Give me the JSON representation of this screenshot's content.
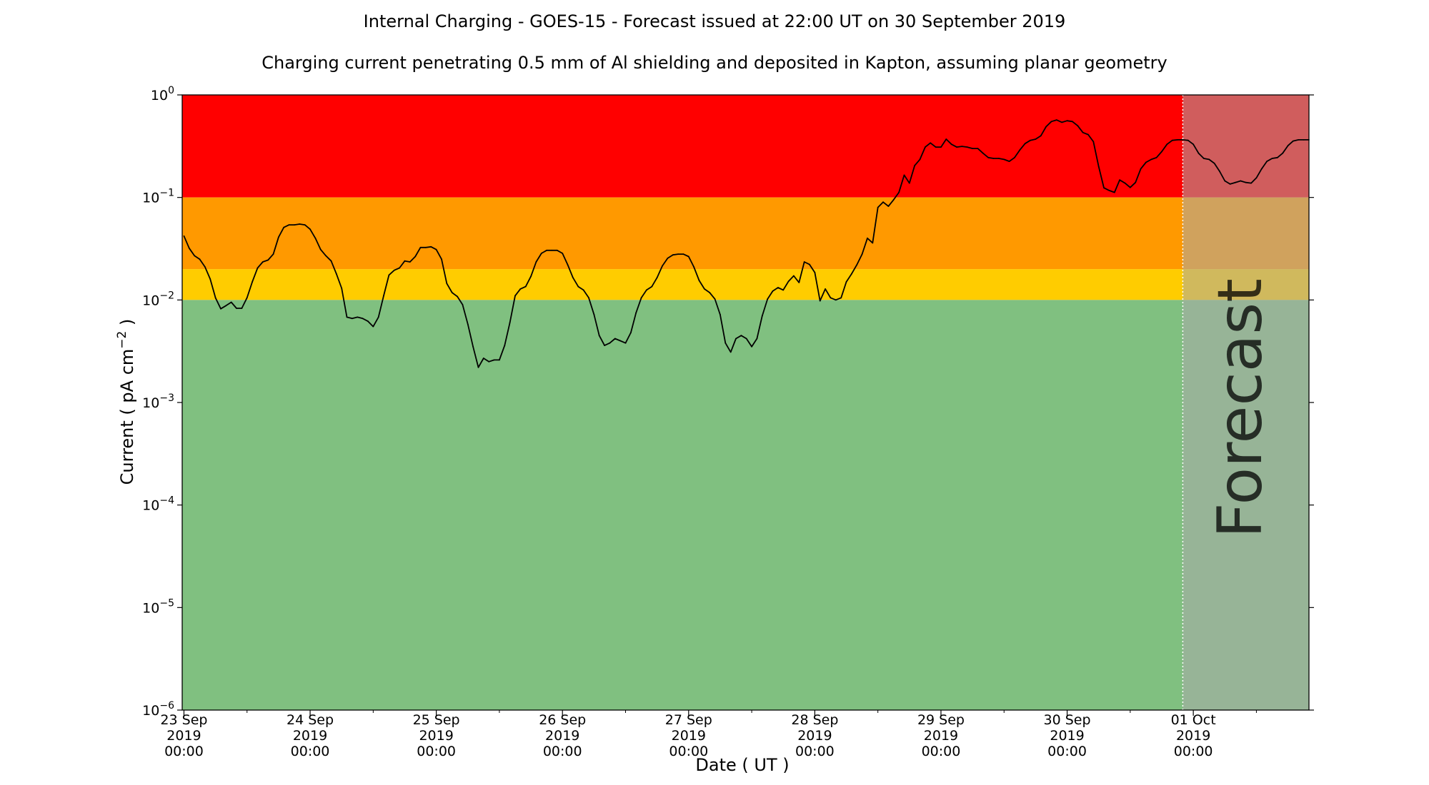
{
  "title": "Internal Charging - GOES-15 - Forecast issued at 22:00 UT on 30 September 2019",
  "subtitle": "Charging current penetrating 0.5 mm of Al shielding and deposited in Kapton, assuming planar geometry",
  "forecast_label": "Forecast",
  "colors": {
    "red": "#ff0000",
    "orange": "#ff9900",
    "yellow": "#ffcc00",
    "green": "#80c080",
    "forecast_overlay": "#aaaaaa",
    "line": "#000000"
  },
  "chart_data": {
    "type": "line",
    "title": "Internal Charging - GOES-15 - Forecast issued at 22:00 UT on 30 September 2019",
    "subtitle": "Charging current penetrating 0.5 mm of Al shielding and deposited in Kapton, assuming planar geometry",
    "xlabel": "Date ( UT )",
    "ylabel": "Current ( pA cm⁻² )",
    "yscale": "log",
    "ylim": [
      1e-06,
      1
    ],
    "xlim": [
      "2019-09-22T23:40",
      "2019-10-01T22:00"
    ],
    "forecast_start": "2019-09-30T22:00",
    "y_ticks": [
      {
        "value": 1e-06,
        "base": "10",
        "exp": "−6"
      },
      {
        "value": 1e-05,
        "base": "10",
        "exp": "−5"
      },
      {
        "value": 0.0001,
        "base": "10",
        "exp": "−4"
      },
      {
        "value": 0.001,
        "base": "10",
        "exp": "−3"
      },
      {
        "value": 0.01,
        "base": "10",
        "exp": "−2"
      },
      {
        "value": 0.1,
        "base": "10",
        "exp": "−1"
      },
      {
        "value": 1,
        "base": "10",
        "exp": "0"
      }
    ],
    "x_ticks": [
      {
        "date": "2019-09-23T00:00",
        "lines": [
          "23 Sep",
          "2019",
          "00:00"
        ]
      },
      {
        "date": "2019-09-24T00:00",
        "lines": [
          "24 Sep",
          "2019",
          "00:00"
        ]
      },
      {
        "date": "2019-09-25T00:00",
        "lines": [
          "25 Sep",
          "2019",
          "00:00"
        ]
      },
      {
        "date": "2019-09-26T00:00",
        "lines": [
          "26 Sep",
          "2019",
          "00:00"
        ]
      },
      {
        "date": "2019-09-27T00:00",
        "lines": [
          "27 Sep",
          "2019",
          "00:00"
        ]
      },
      {
        "date": "2019-09-28T00:00",
        "lines": [
          "28 Sep",
          "2019",
          "00:00"
        ]
      },
      {
        "date": "2019-09-29T00:00",
        "lines": [
          "29 Sep",
          "2019",
          "00:00"
        ]
      },
      {
        "date": "2019-09-30T00:00",
        "lines": [
          "30 Sep",
          "2019",
          "00:00"
        ]
      },
      {
        "date": "2019-10-01T00:00",
        "lines": [
          "01 Oct",
          "2019",
          "00:00"
        ]
      }
    ],
    "bands": [
      {
        "name": "red",
        "from": 0.1,
        "to": 1
      },
      {
        "name": "orange",
        "from": 0.02,
        "to": 0.1
      },
      {
        "name": "yellow",
        "from": 0.01,
        "to": 0.02
      },
      {
        "name": "green",
        "from": 1e-06,
        "to": 0.01
      }
    ],
    "series": [
      {
        "points": [
          [
            "2019-09-23T00:00",
            0.042
          ],
          [
            "2019-09-23T01:00",
            0.032
          ],
          [
            "2019-09-23T02:00",
            0.027
          ],
          [
            "2019-09-23T03:00",
            0.025
          ],
          [
            "2019-09-23T04:00",
            0.021
          ],
          [
            "2019-09-23T05:00",
            0.016
          ],
          [
            "2019-09-23T06:00",
            0.0105
          ],
          [
            "2019-09-23T07:00",
            0.0082
          ],
          [
            "2019-09-23T08:00",
            0.0088
          ],
          [
            "2019-09-23T09:00",
            0.0095
          ],
          [
            "2019-09-23T10:00",
            0.0083
          ],
          [
            "2019-09-23T11:00",
            0.0083
          ],
          [
            "2019-09-23T12:00",
            0.0105
          ],
          [
            "2019-09-23T13:00",
            0.015
          ],
          [
            "2019-09-23T14:00",
            0.0205
          ],
          [
            "2019-09-23T15:00",
            0.0235
          ],
          [
            "2019-09-23T16:00",
            0.0245
          ],
          [
            "2019-09-23T17:00",
            0.028
          ],
          [
            "2019-09-23T18:00",
            0.041
          ],
          [
            "2019-09-23T19:00",
            0.051
          ],
          [
            "2019-09-23T20:00",
            0.054
          ],
          [
            "2019-09-23T21:00",
            0.054
          ],
          [
            "2019-09-23T22:00",
            0.055
          ],
          [
            "2019-09-23T23:00",
            0.054
          ],
          [
            "2019-09-24T00:00",
            0.049
          ],
          [
            "2019-09-24T01:00",
            0.04
          ],
          [
            "2019-09-24T02:00",
            0.031
          ],
          [
            "2019-09-24T03:00",
            0.027
          ],
          [
            "2019-09-24T04:00",
            0.024
          ],
          [
            "2019-09-24T05:00",
            0.018
          ],
          [
            "2019-09-24T06:00",
            0.013
          ],
          [
            "2019-09-24T07:00",
            0.0068
          ],
          [
            "2019-09-24T08:00",
            0.0066
          ],
          [
            "2019-09-24T09:00",
            0.0068
          ],
          [
            "2019-09-24T10:00",
            0.0066
          ],
          [
            "2019-09-24T11:00",
            0.0062
          ],
          [
            "2019-09-24T12:00",
            0.0055
          ],
          [
            "2019-09-24T13:00",
            0.0068
          ],
          [
            "2019-09-24T14:00",
            0.011
          ],
          [
            "2019-09-24T15:00",
            0.0175
          ],
          [
            "2019-09-24T16:00",
            0.0195
          ],
          [
            "2019-09-24T17:00",
            0.0205
          ],
          [
            "2019-09-24T18:00",
            0.024
          ],
          [
            "2019-09-24T19:00",
            0.0235
          ],
          [
            "2019-09-24T20:00",
            0.0265
          ],
          [
            "2019-09-24T21:00",
            0.0325
          ],
          [
            "2019-09-24T22:00",
            0.0325
          ],
          [
            "2019-09-24T23:00",
            0.033
          ],
          [
            "2019-09-25T00:00",
            0.031
          ],
          [
            "2019-09-25T01:00",
            0.025
          ],
          [
            "2019-09-25T02:00",
            0.0145
          ],
          [
            "2019-09-25T03:00",
            0.0118
          ],
          [
            "2019-09-25T04:00",
            0.0108
          ],
          [
            "2019-09-25T05:00",
            0.009
          ],
          [
            "2019-09-25T06:00",
            0.0058
          ],
          [
            "2019-09-25T07:00",
            0.0035
          ],
          [
            "2019-09-25T08:00",
            0.0022
          ],
          [
            "2019-09-25T09:00",
            0.0027
          ],
          [
            "2019-09-25T10:00",
            0.0025
          ],
          [
            "2019-09-25T11:00",
            0.0026
          ],
          [
            "2019-09-25T12:00",
            0.0026
          ],
          [
            "2019-09-25T13:00",
            0.0036
          ],
          [
            "2019-09-25T14:00",
            0.006
          ],
          [
            "2019-09-25T15:00",
            0.011
          ],
          [
            "2019-09-25T16:00",
            0.0128
          ],
          [
            "2019-09-25T17:00",
            0.0135
          ],
          [
            "2019-09-25T18:00",
            0.017
          ],
          [
            "2019-09-25T19:00",
            0.0235
          ],
          [
            "2019-09-25T20:00",
            0.0285
          ],
          [
            "2019-09-25T21:00",
            0.0305
          ],
          [
            "2019-09-25T22:00",
            0.0305
          ],
          [
            "2019-09-25T23:00",
            0.0305
          ],
          [
            "2019-09-26T00:00",
            0.0285
          ],
          [
            "2019-09-26T01:00",
            0.022
          ],
          [
            "2019-09-26T02:00",
            0.0165
          ],
          [
            "2019-09-26T03:00",
            0.0135
          ],
          [
            "2019-09-26T04:00",
            0.0125
          ],
          [
            "2019-09-26T05:00",
            0.0105
          ],
          [
            "2019-09-26T06:00",
            0.0072
          ],
          [
            "2019-09-26T07:00",
            0.0045
          ],
          [
            "2019-09-26T08:00",
            0.0036
          ],
          [
            "2019-09-26T09:00",
            0.0038
          ],
          [
            "2019-09-26T10:00",
            0.0042
          ],
          [
            "2019-09-26T11:00",
            0.004
          ],
          [
            "2019-09-26T12:00",
            0.0038
          ],
          [
            "2019-09-26T13:00",
            0.0048
          ],
          [
            "2019-09-26T14:00",
            0.0075
          ],
          [
            "2019-09-26T15:00",
            0.0105
          ],
          [
            "2019-09-26T16:00",
            0.0125
          ],
          [
            "2019-09-26T17:00",
            0.0135
          ],
          [
            "2019-09-26T18:00",
            0.0165
          ],
          [
            "2019-09-26T19:00",
            0.0215
          ],
          [
            "2019-09-26T20:00",
            0.0255
          ],
          [
            "2019-09-26T21:00",
            0.0275
          ],
          [
            "2019-09-26T22:00",
            0.028
          ],
          [
            "2019-09-26T23:00",
            0.028
          ],
          [
            "2019-09-27T00:00",
            0.0265
          ],
          [
            "2019-09-27T01:00",
            0.021
          ],
          [
            "2019-09-27T02:00",
            0.0155
          ],
          [
            "2019-09-27T03:00",
            0.0128
          ],
          [
            "2019-09-27T04:00",
            0.0118
          ],
          [
            "2019-09-27T05:00",
            0.0102
          ],
          [
            "2019-09-27T06:00",
            0.0072
          ],
          [
            "2019-09-27T07:00",
            0.0038
          ],
          [
            "2019-09-27T08:00",
            0.0031
          ],
          [
            "2019-09-27T09:00",
            0.0042
          ],
          [
            "2019-09-27T10:00",
            0.0045
          ],
          [
            "2019-09-27T11:00",
            0.0042
          ],
          [
            "2019-09-27T12:00",
            0.0035
          ],
          [
            "2019-09-27T13:00",
            0.0042
          ],
          [
            "2019-09-27T14:00",
            0.007
          ],
          [
            "2019-09-27T15:00",
            0.0102
          ],
          [
            "2019-09-27T16:00",
            0.0122
          ],
          [
            "2019-09-27T17:00",
            0.0132
          ],
          [
            "2019-09-27T18:00",
            0.0125
          ],
          [
            "2019-09-27T19:00",
            0.0152
          ],
          [
            "2019-09-27T20:00",
            0.0172
          ],
          [
            "2019-09-27T21:00",
            0.0148
          ],
          [
            "2019-09-27T22:00",
            0.0235
          ],
          [
            "2019-09-27T23:00",
            0.0222
          ],
          [
            "2019-09-28T00:00",
            0.0185
          ],
          [
            "2019-09-28T01:00",
            0.0098
          ],
          [
            "2019-09-28T02:00",
            0.0128
          ],
          [
            "2019-09-28T03:00",
            0.0105
          ],
          [
            "2019-09-28T04:00",
            0.01
          ],
          [
            "2019-09-28T05:00",
            0.0105
          ],
          [
            "2019-09-28T06:00",
            0.015
          ],
          [
            "2019-09-28T07:00",
            0.018
          ],
          [
            "2019-09-28T08:00",
            0.022
          ],
          [
            "2019-09-28T09:00",
            0.028
          ],
          [
            "2019-09-28T10:00",
            0.04
          ],
          [
            "2019-09-28T11:00",
            0.036
          ],
          [
            "2019-09-28T12:00",
            0.08
          ],
          [
            "2019-09-28T13:00",
            0.09
          ],
          [
            "2019-09-28T14:00",
            0.082
          ],
          [
            "2019-09-28T15:00",
            0.095
          ],
          [
            "2019-09-28T16:00",
            0.112
          ],
          [
            "2019-09-28T17:00",
            0.165
          ],
          [
            "2019-09-28T18:00",
            0.138
          ],
          [
            "2019-09-28T19:00",
            0.205
          ],
          [
            "2019-09-28T20:00",
            0.235
          ],
          [
            "2019-09-28T21:00",
            0.31
          ],
          [
            "2019-09-28T22:00",
            0.34
          ],
          [
            "2019-09-28T23:00",
            0.31
          ],
          [
            "2019-09-29T00:00",
            0.31
          ],
          [
            "2019-09-29T01:00",
            0.37
          ],
          [
            "2019-09-29T02:00",
            0.33
          ],
          [
            "2019-09-29T03:00",
            0.31
          ],
          [
            "2019-09-29T04:00",
            0.315
          ],
          [
            "2019-09-29T05:00",
            0.31
          ],
          [
            "2019-09-29T06:00",
            0.3
          ],
          [
            "2019-09-29T07:00",
            0.3
          ],
          [
            "2019-09-29T08:00",
            0.27
          ],
          [
            "2019-09-29T09:00",
            0.245
          ],
          [
            "2019-09-29T10:00",
            0.24
          ],
          [
            "2019-09-29T11:00",
            0.24
          ],
          [
            "2019-09-29T12:00",
            0.235
          ],
          [
            "2019-09-29T13:00",
            0.225
          ],
          [
            "2019-09-29T14:00",
            0.245
          ],
          [
            "2019-09-29T15:00",
            0.29
          ],
          [
            "2019-09-29T16:00",
            0.335
          ],
          [
            "2019-09-29T17:00",
            0.36
          ],
          [
            "2019-09-29T18:00",
            0.37
          ],
          [
            "2019-09-29T19:00",
            0.4
          ],
          [
            "2019-09-29T20:00",
            0.49
          ],
          [
            "2019-09-29T21:00",
            0.55
          ],
          [
            "2019-09-29T22:00",
            0.57
          ],
          [
            "2019-09-29T23:00",
            0.54
          ],
          [
            "2019-09-30T00:00",
            0.56
          ],
          [
            "2019-09-30T01:00",
            0.55
          ],
          [
            "2019-09-30T02:00",
            0.5
          ],
          [
            "2019-09-30T03:00",
            0.43
          ],
          [
            "2019-09-30T04:00",
            0.41
          ],
          [
            "2019-09-30T05:00",
            0.35
          ],
          [
            "2019-09-30T06:00",
            0.2
          ],
          [
            "2019-09-30T07:00",
            0.124
          ],
          [
            "2019-09-30T08:00",
            0.117
          ],
          [
            "2019-09-30T09:00",
            0.112
          ],
          [
            "2019-09-30T10:00",
            0.148
          ],
          [
            "2019-09-30T11:00",
            0.138
          ],
          [
            "2019-09-30T12:00",
            0.125
          ],
          [
            "2019-09-30T13:00",
            0.14
          ],
          [
            "2019-09-30T14:00",
            0.19
          ],
          [
            "2019-09-30T15:00",
            0.22
          ],
          [
            "2019-09-30T16:00",
            0.235
          ],
          [
            "2019-09-30T17:00",
            0.245
          ],
          [
            "2019-09-30T18:00",
            0.28
          ],
          [
            "2019-09-30T19:00",
            0.33
          ],
          [
            "2019-09-30T20:00",
            0.36
          ],
          [
            "2019-09-30T21:00",
            0.365
          ],
          [
            "2019-09-30T22:00",
            0.365
          ],
          [
            "2019-09-30T23:00",
            0.36
          ],
          [
            "2019-10-01T00:00",
            0.33
          ],
          [
            "2019-10-01T01:00",
            0.27
          ],
          [
            "2019-10-01T02:00",
            0.24
          ],
          [
            "2019-10-01T03:00",
            0.235
          ],
          [
            "2019-10-01T04:00",
            0.215
          ],
          [
            "2019-10-01T05:00",
            0.18
          ],
          [
            "2019-10-01T06:00",
            0.145
          ],
          [
            "2019-10-01T07:00",
            0.135
          ],
          [
            "2019-10-01T08:00",
            0.14
          ],
          [
            "2019-10-01T09:00",
            0.145
          ],
          [
            "2019-10-01T10:00",
            0.14
          ],
          [
            "2019-10-01T11:00",
            0.138
          ],
          [
            "2019-10-01T12:00",
            0.155
          ],
          [
            "2019-10-01T13:00",
            0.19
          ],
          [
            "2019-10-01T14:00",
            0.225
          ],
          [
            "2019-10-01T15:00",
            0.24
          ],
          [
            "2019-10-01T16:00",
            0.245
          ],
          [
            "2019-10-01T17:00",
            0.27
          ],
          [
            "2019-10-01T18:00",
            0.32
          ],
          [
            "2019-10-01T19:00",
            0.355
          ],
          [
            "2019-10-01T20:00",
            0.365
          ],
          [
            "2019-10-01T21:00",
            0.365
          ],
          [
            "2019-10-01T22:00",
            0.365
          ]
        ]
      }
    ]
  }
}
